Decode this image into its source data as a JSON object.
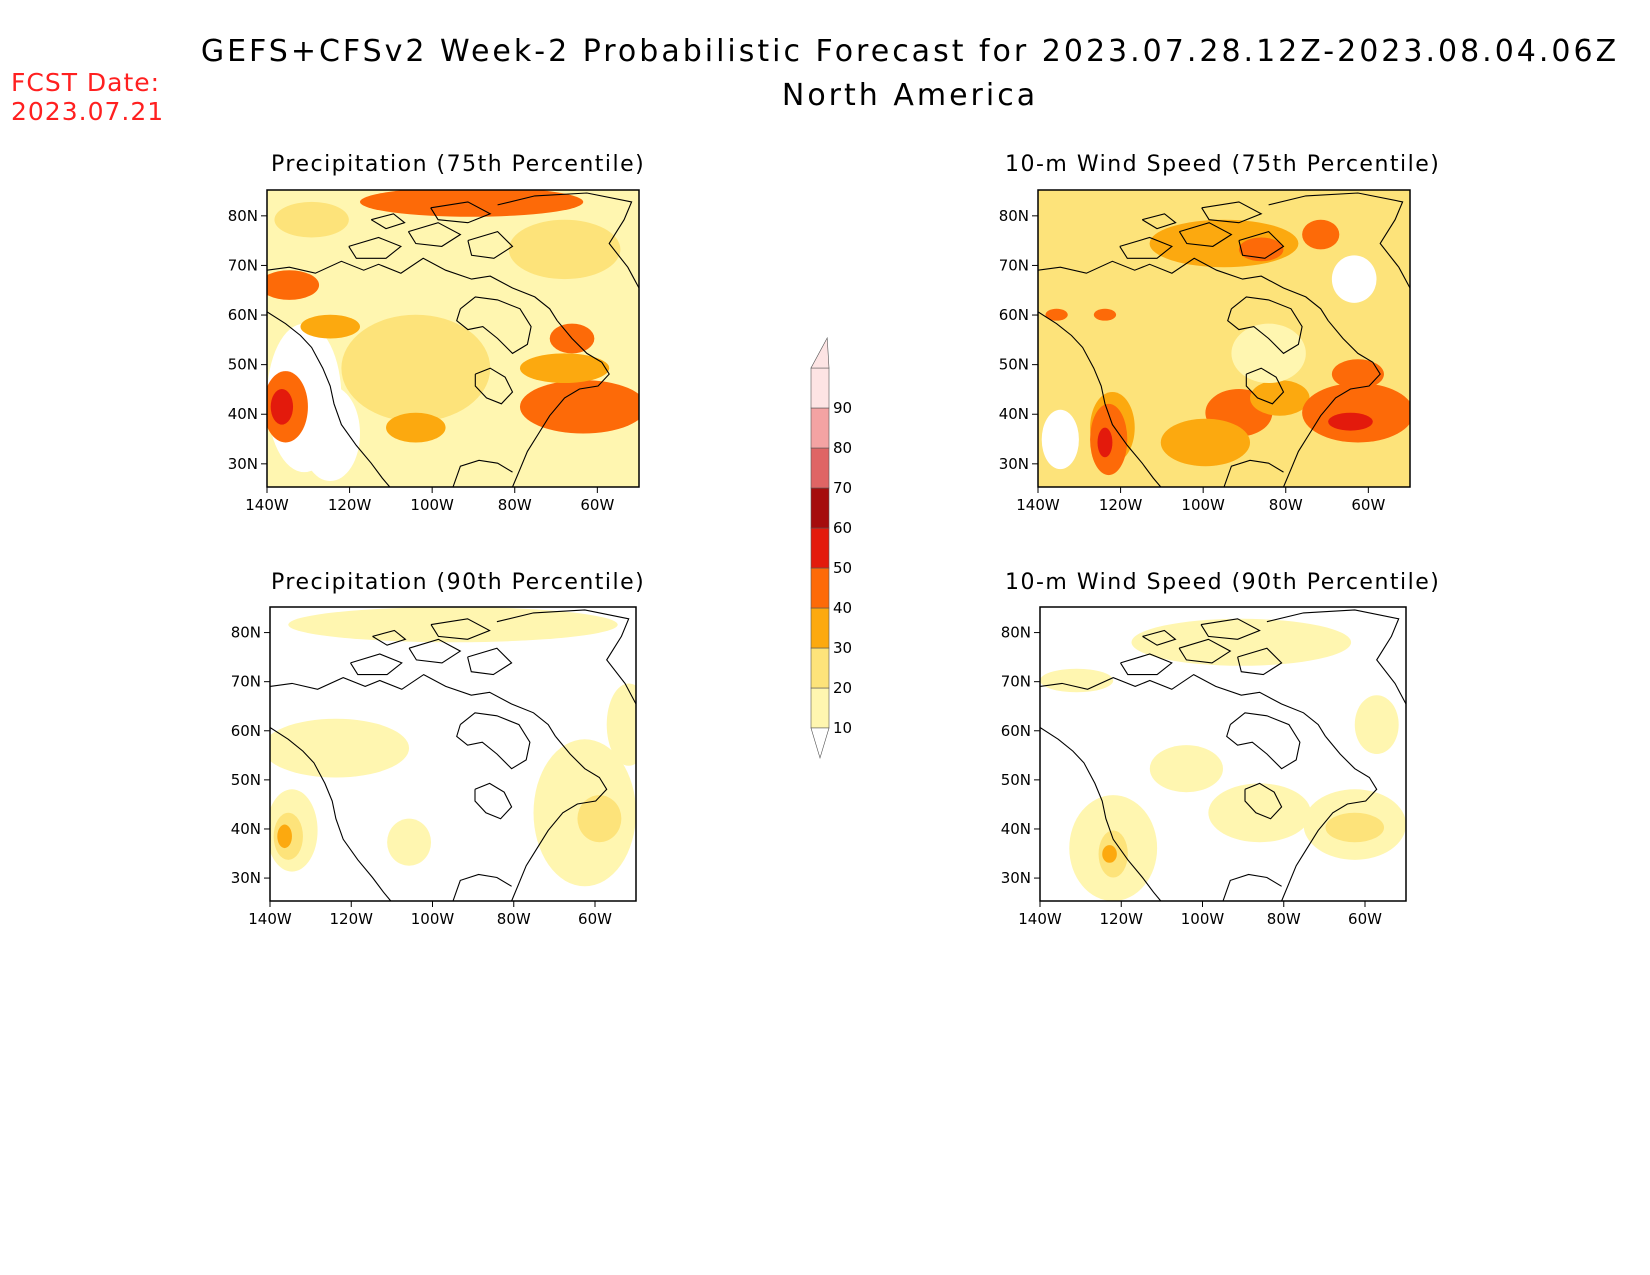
{
  "header": {
    "title": "GEFS+CFSv2 Week-2 Probabilistic Forecast for 2023.07.28.12Z-2023.08.04.06Z",
    "subtitle": "North America",
    "fcst_label": "FCST Date:",
    "fcst_date": "2023.07.21"
  },
  "axes": {
    "lat_labels": [
      "80N",
      "70N",
      "60N",
      "50N",
      "40N",
      "30N"
    ],
    "lon_labels": [
      "140W",
      "120W",
      "100W",
      "80W",
      "60W"
    ]
  },
  "panels": [
    {
      "id": "precip75",
      "title": "Precipitation (75th Percentile)"
    },
    {
      "id": "wind75",
      "title": "10-m Wind Speed (75th Percentile)"
    },
    {
      "id": "precip90",
      "title": "Precipitation (90th Percentile)"
    },
    {
      "id": "wind90",
      "title": "10-m Wind Speed (90th Percentile)"
    }
  ],
  "colorbar": {
    "levels": [
      "10",
      "20",
      "30",
      "40",
      "50",
      "60",
      "70",
      "80",
      "90"
    ],
    "colors": [
      "#fff6b0",
      "#fde37a",
      "#fca90f",
      "#fd6a08",
      "#e31a0c",
      "#a50d0d",
      "#df6565",
      "#f4a3a3",
      "#fde4e4"
    ]
  },
  "legend_colors": {
    "white": "#ffffff",
    "pale_yellow": "#fff6b0",
    "light_orange": "#fde37a",
    "orange": "#fca90f",
    "dark_orange": "#fd6a08",
    "red": "#e31a0c"
  }
}
